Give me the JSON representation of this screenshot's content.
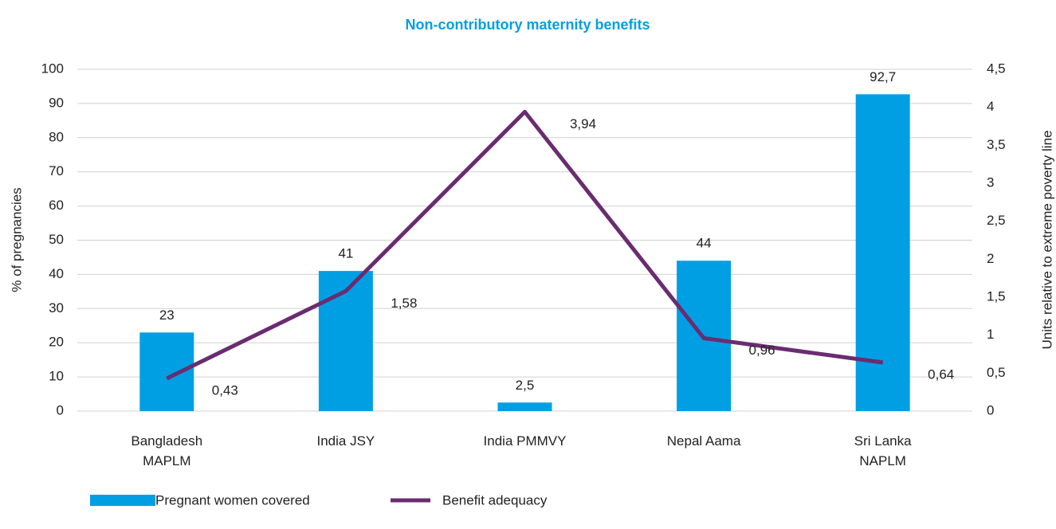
{
  "chart_data": {
    "type": "bar_line",
    "title": "Non-contributory maternity benefits",
    "categories": [
      "Bangladesh\nMAPLM",
      "India JSY",
      "India PMMVY",
      "Nepal Aama",
      "Sri Lanka\nNAPLM"
    ],
    "ylabel": "% of pregnancies",
    "y2label": "Units relative to extreme poverty line",
    "ylim": [
      0,
      100
    ],
    "yticks": [
      0,
      10,
      20,
      30,
      40,
      50,
      60,
      70,
      80,
      90,
      100
    ],
    "y2lim": [
      0,
      4.5
    ],
    "y2ticks": [
      0,
      {
        "value": 0.5,
        "label": "0,5"
      },
      1,
      {
        "value": 1.5,
        "label": "1,5"
      },
      2,
      {
        "value": 2.5,
        "label": "2,5"
      },
      3,
      {
        "value": 3.5,
        "label": "3,5"
      },
      4,
      {
        "value": 4.5,
        "label": "4,5"
      }
    ],
    "grid": true,
    "legend": "bottom-left",
    "series": [
      {
        "name": "Pregnant women covered",
        "type": "bar",
        "color": "#009fe3",
        "values": [
          23,
          41,
          2.5,
          44,
          92.7
        ],
        "value_labels": [
          "23",
          "41",
          "2,5",
          "44",
          "92,7"
        ]
      },
      {
        "name": "Benefit adequacy",
        "type": "line",
        "axis": "y2",
        "color": "#6a2c70",
        "values": [
          0.43,
          1.58,
          3.94,
          0.96,
          0.64
        ],
        "value_labels": [
          "0,43",
          "1,58",
          "3,94",
          "0,96",
          "0,64"
        ]
      }
    ]
  }
}
